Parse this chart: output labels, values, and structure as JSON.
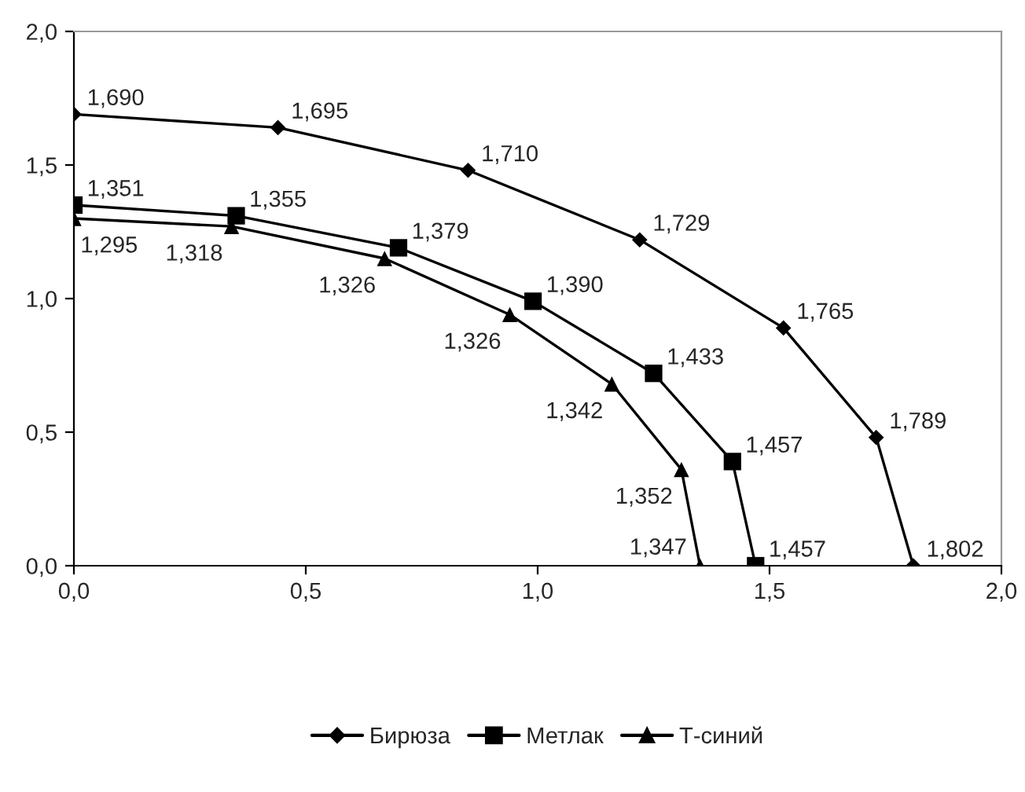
{
  "chart_data": {
    "type": "line",
    "xlim": [
      0,
      2
    ],
    "ylim": [
      0,
      2
    ],
    "xticks": [
      {
        "value": 0,
        "label": "0,0"
      },
      {
        "value": 0.5,
        "label": "0,5"
      },
      {
        "value": 1,
        "label": "1,0"
      },
      {
        "value": 1.5,
        "label": "1,5"
      },
      {
        "value": 2,
        "label": "2,0"
      }
    ],
    "yticks": [
      {
        "value": 0,
        "label": "0,0"
      },
      {
        "value": 0.5,
        "label": "0,5"
      },
      {
        "value": 1,
        "label": "1,0"
      },
      {
        "value": 1.5,
        "label": "1,5"
      },
      {
        "value": 2,
        "label": "2,0"
      }
    ],
    "grid": false,
    "legend": "bottom",
    "series": [
      {
        "name": "Бирюза",
        "color": "#000000",
        "marker": "diamond",
        "x": [
          0,
          0.44,
          0.85,
          1.22,
          1.53,
          1.73,
          1.81
        ],
        "values": [
          1.69,
          1.64,
          1.48,
          1.22,
          0.89,
          0.48,
          0
        ]
      },
      {
        "name": "Метлак",
        "color": "#000000",
        "marker": "square",
        "x": [
          0,
          0.35,
          0.7,
          0.99,
          1.25,
          1.42,
          1.47
        ],
        "values": [
          1.35,
          1.31,
          1.19,
          0.99,
          0.72,
          0.39,
          0
        ]
      },
      {
        "name": "Т-синий",
        "color": "#000000",
        "marker": "triangle",
        "x": [
          0,
          0.34,
          0.67,
          0.94,
          1.16,
          1.31,
          1.35
        ],
        "values": [
          1.3,
          1.27,
          1.15,
          0.94,
          0.68,
          0.36,
          0
        ]
      }
    ],
    "annotations": [
      {
        "text": "1,690",
        "x": 0,
        "y": 1.69
      },
      {
        "text": "1,695",
        "x": 0.44,
        "y": 1.64
      },
      {
        "text": "1,710",
        "x": 0.85,
        "y": 1.48
      },
      {
        "text": "1,729",
        "x": 1.22,
        "y": 1.22
      },
      {
        "text": "1,765",
        "x": 1.53,
        "y": 0.89
      },
      {
        "text": "1,789",
        "x": 1.73,
        "y": 0.48
      },
      {
        "text": "1,802",
        "x": 1.81,
        "y": 0
      },
      {
        "text": "1,351",
        "x": 0,
        "y": 1.35
      },
      {
        "text": "1,355",
        "x": 0.35,
        "y": 1.31
      },
      {
        "text": "1,379",
        "x": 0.7,
        "y": 1.19
      },
      {
        "text": "1,390",
        "x": 0.99,
        "y": 0.99
      },
      {
        "text": "1,433",
        "x": 1.25,
        "y": 0.72
      },
      {
        "text": "1,457",
        "x": 1.42,
        "y": 0.39
      },
      {
        "text": "1,457",
        "x": 1.47,
        "y": 0
      },
      {
        "text": "1,295",
        "x": 0,
        "y": 1.3
      },
      {
        "text": "1,318",
        "x": 0.34,
        "y": 1.27
      },
      {
        "text": "1,326",
        "x": 0.67,
        "y": 1.15
      },
      {
        "text": "1,326",
        "x": 0.94,
        "y": 0.94
      },
      {
        "text": "1,342",
        "x": 1.16,
        "y": 0.68
      },
      {
        "text": "1,352",
        "x": 1.31,
        "y": 0.36
      },
      {
        "text": "1,347",
        "x": 1.35,
        "y": 0
      }
    ]
  }
}
